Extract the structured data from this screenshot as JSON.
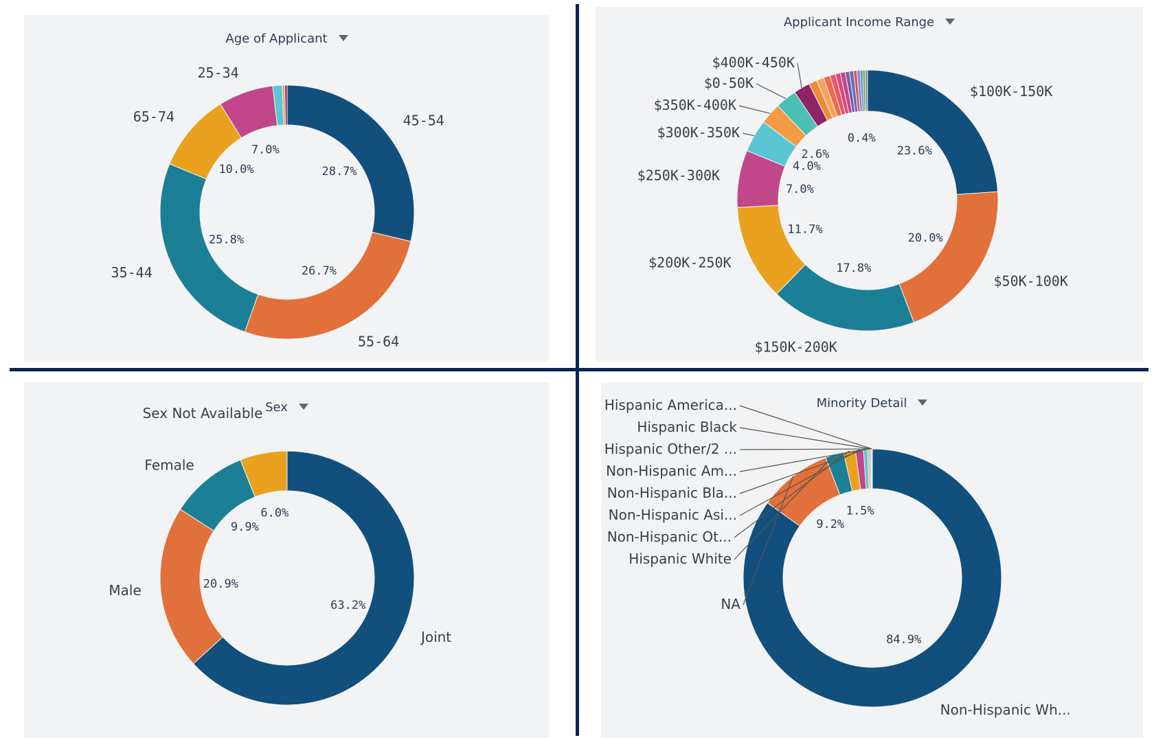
{
  "chart_data": [
    {
      "type": "pie",
      "title": "Age of Applicant",
      "donut": true,
      "slices": [
        {
          "label": "45-54",
          "value": 28.7,
          "pct_label": "28.7%",
          "color": "#114f7d"
        },
        {
          "label": "55-64",
          "value": 26.7,
          "pct_label": "26.7%",
          "color": "#e2703a"
        },
        {
          "label": "35-44",
          "value": 25.8,
          "pct_label": "25.8%",
          "color": "#1b7f95"
        },
        {
          "label": "65-74",
          "value": 10.0,
          "pct_label": "10.0%",
          "color": "#eaa11f"
        },
        {
          "label": "25-34",
          "value": 7.0,
          "pct_label": "7.0%",
          "color": "#c1468a"
        },
        {
          "label": "",
          "value": 1.2,
          "pct_label": "",
          "color": "#5bc6d3"
        },
        {
          "label": "",
          "value": 0.3,
          "pct_label": "",
          "color": "#f39c44"
        },
        {
          "label": "",
          "value": 0.3,
          "pct_label": "",
          "color": "#8e2365"
        }
      ]
    },
    {
      "type": "pie",
      "title": "Applicant Income Range",
      "donut": true,
      "slices": [
        {
          "label": "$100K-150K",
          "value": 23.6,
          "pct_label": "23.6%",
          "color": "#114f7d"
        },
        {
          "label": "$50K-100K",
          "value": 20.0,
          "pct_label": "20.0%",
          "color": "#e2703a"
        },
        {
          "label": "$150K-200K",
          "value": 17.8,
          "pct_label": "17.8%",
          "color": "#1b7f95"
        },
        {
          "label": "$200K-250K",
          "value": 11.7,
          "pct_label": "11.7%",
          "color": "#eaa11f"
        },
        {
          "label": "$250K-300K",
          "value": 7.0,
          "pct_label": "7.0%",
          "color": "#c1468a"
        },
        {
          "label": "$300K-350K",
          "value": 4.0,
          "pct_label": "4.0%",
          "color": "#5bc6d3"
        },
        {
          "label": "$350K-400K",
          "value": 2.6,
          "pct_label": "2.6%",
          "color": "#f39c44"
        },
        {
          "label": "$0-50K",
          "value": 2.6,
          "pct_label": "",
          "color": "#4cbfb4"
        },
        {
          "label": "$400K-450K",
          "value": 2.0,
          "pct_label": "",
          "color": "#8e2365"
        },
        {
          "label": "",
          "value": 1.0,
          "pct_label": "",
          "color": "#f08a3a"
        },
        {
          "label": "",
          "value": 0.9,
          "pct_label": "",
          "color": "#f5a35c"
        },
        {
          "label": "",
          "value": 0.8,
          "pct_label": "",
          "color": "#ee6b4d"
        },
        {
          "label": "",
          "value": 0.7,
          "pct_label": "",
          "color": "#e8566a"
        },
        {
          "label": "",
          "value": 0.6,
          "pct_label": "",
          "color": "#d84a7a"
        },
        {
          "label": "",
          "value": 0.6,
          "pct_label": "",
          "color": "#c1468a"
        },
        {
          "label": "",
          "value": 0.5,
          "pct_label": "",
          "color": "#7a5aa8"
        },
        {
          "label": "",
          "value": 0.5,
          "pct_label": "",
          "color": "#5b6fc0"
        },
        {
          "label": "",
          "value": 0.4,
          "pct_label": "0.4%",
          "color": "#d9534f"
        },
        {
          "label": "",
          "value": 0.4,
          "pct_label": "",
          "color": "#9b7fd0"
        },
        {
          "label": "",
          "value": 0.3,
          "pct_label": "",
          "color": "#4a90c8"
        },
        {
          "label": "",
          "value": 0.3,
          "pct_label": "",
          "color": "#6aa96e"
        },
        {
          "label": "",
          "value": 0.3,
          "pct_label": "",
          "color": "#8c8c8c"
        }
      ]
    },
    {
      "type": "pie",
      "title": "Sex",
      "donut": true,
      "slices": [
        {
          "label": "Joint",
          "value": 63.2,
          "pct_label": "63.2%",
          "color": "#114f7d"
        },
        {
          "label": "Male",
          "value": 20.9,
          "pct_label": "20.9%",
          "color": "#e2703a"
        },
        {
          "label": "Female",
          "value": 9.9,
          "pct_label": "9.9%",
          "color": "#1b7f95"
        },
        {
          "label": "Sex Not Available",
          "value": 6.0,
          "pct_label": "6.0%",
          "color": "#eaa11f"
        }
      ]
    },
    {
      "type": "pie",
      "title": "Minority Detail",
      "donut": true,
      "slices": [
        {
          "label": "Non-Hispanic Wh...",
          "value": 84.9,
          "pct_label": "84.9%",
          "color": "#114f7d"
        },
        {
          "label": "NA",
          "value": 9.2,
          "pct_label": "9.2%",
          "color": "#e2703a"
        },
        {
          "label": "Hispanic White",
          "value": 2.3,
          "pct_label": "",
          "color": "#1b7f95"
        },
        {
          "label": "Non-Hispanic Ot...",
          "value": 1.5,
          "pct_label": "1.5%",
          "color": "#eaa11f"
        },
        {
          "label": "Non-Hispanic Asi...",
          "value": 1.0,
          "pct_label": "",
          "color": "#c1468a"
        },
        {
          "label": "Non-Hispanic Bla...",
          "value": 0.5,
          "pct_label": "",
          "color": "#5bc6d3"
        },
        {
          "label": "Non-Hispanic Am...",
          "value": 0.2,
          "pct_label": "",
          "color": "#f39c44"
        },
        {
          "label": "Hispanic Other/2 ...",
          "value": 0.2,
          "pct_label": "",
          "color": "#4cbfb4"
        },
        {
          "label": "Hispanic Black",
          "value": 0.1,
          "pct_label": "",
          "color": "#8e2365"
        },
        {
          "label": "Hispanic America...",
          "value": 0.1,
          "pct_label": "",
          "color": "#f08a3a"
        }
      ]
    }
  ]
}
